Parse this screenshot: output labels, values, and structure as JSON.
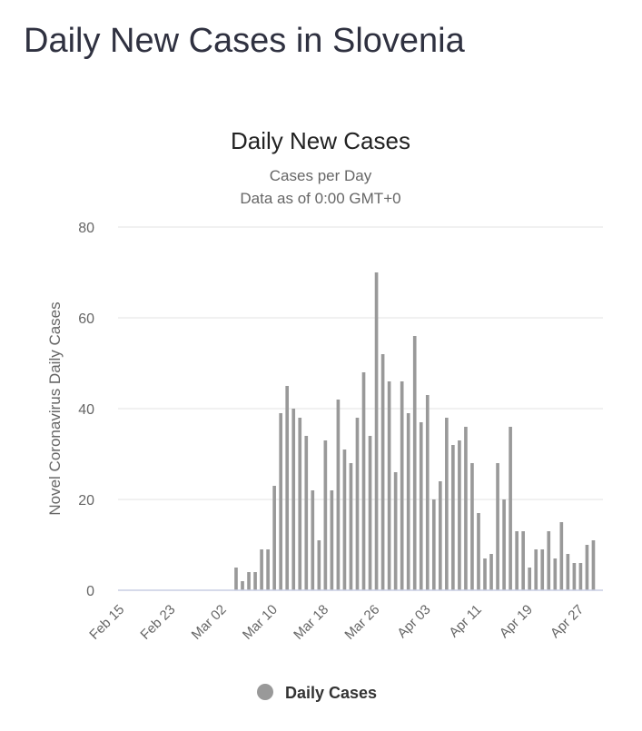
{
  "page": {
    "title": "Daily New Cases in Slovenia"
  },
  "chart_data": {
    "type": "bar",
    "title": "Daily New Cases",
    "subtitle": "Cases per Day",
    "subtitle2": "Data as of 0:00 GMT+0",
    "xlabel": "",
    "ylabel": "Novel Coronavirus Daily Cases",
    "ylim": [
      0,
      80
    ],
    "yticks": [
      0,
      20,
      40,
      60,
      80
    ],
    "xtick_labels": [
      "Feb 15",
      "Feb 23",
      "Mar 02",
      "Mar 10",
      "Mar 18",
      "Mar 26",
      "Apr 03",
      "Apr 11",
      "Apr 19",
      "Apr 27"
    ],
    "categories": [
      "Feb 15",
      "Feb 16",
      "Feb 17",
      "Feb 18",
      "Feb 19",
      "Feb 20",
      "Feb 21",
      "Feb 22",
      "Feb 23",
      "Feb 24",
      "Feb 25",
      "Feb 26",
      "Feb 27",
      "Feb 28",
      "Feb 29",
      "Mar 01",
      "Mar 02",
      "Mar 03",
      "Mar 04",
      "Mar 05",
      "Mar 06",
      "Mar 07",
      "Mar 08",
      "Mar 09",
      "Mar 10",
      "Mar 11",
      "Mar 12",
      "Mar 13",
      "Mar 14",
      "Mar 15",
      "Mar 16",
      "Mar 17",
      "Mar 18",
      "Mar 19",
      "Mar 20",
      "Mar 21",
      "Mar 22",
      "Mar 23",
      "Mar 24",
      "Mar 25",
      "Mar 26",
      "Mar 27",
      "Mar 28",
      "Mar 29",
      "Mar 30",
      "Mar 31",
      "Apr 01",
      "Apr 02",
      "Apr 03",
      "Apr 04",
      "Apr 05",
      "Apr 06",
      "Apr 07",
      "Apr 08",
      "Apr 09",
      "Apr 10",
      "Apr 11",
      "Apr 12",
      "Apr 13",
      "Apr 14",
      "Apr 15",
      "Apr 16",
      "Apr 17",
      "Apr 18",
      "Apr 19",
      "Apr 20",
      "Apr 21",
      "Apr 22",
      "Apr 23",
      "Apr 24",
      "Apr 25",
      "Apr 26",
      "Apr 27",
      "Apr 28",
      "Apr 29",
      "Apr 30"
    ],
    "series": [
      {
        "name": "Daily Cases",
        "color": "#999999",
        "values": [
          0,
          0,
          0,
          0,
          0,
          0,
          0,
          0,
          0,
          0,
          0,
          0,
          0,
          0,
          0,
          0,
          0,
          0,
          5,
          2,
          4,
          4,
          9,
          9,
          23,
          39,
          45,
          40,
          38,
          34,
          22,
          11,
          33,
          22,
          42,
          31,
          28,
          38,
          48,
          34,
          70,
          52,
          46,
          26,
          46,
          39,
          56,
          37,
          43,
          20,
          24,
          38,
          32,
          33,
          36,
          28,
          17,
          7,
          8,
          28,
          20,
          36,
          13,
          13,
          5,
          9,
          9,
          13,
          7,
          15,
          8,
          6,
          6,
          10,
          11,
          0
        ]
      }
    ],
    "legend": {
      "position": "bottom-center",
      "label": "Daily Cases"
    },
    "grid": true
  }
}
